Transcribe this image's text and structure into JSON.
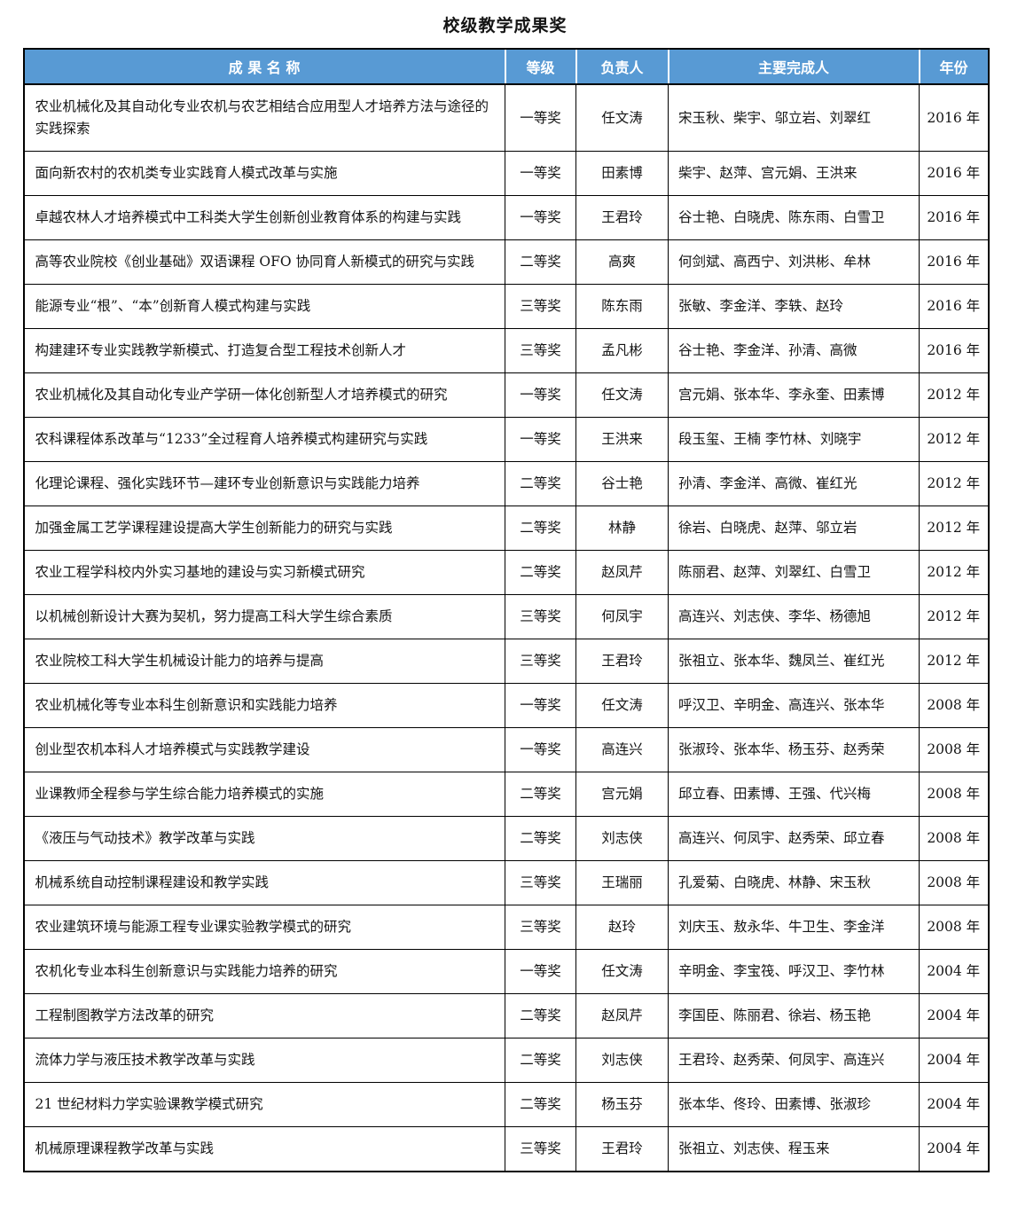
{
  "page": {
    "title": "校级教学成果奖"
  },
  "colors": {
    "header_bg": "#589AD4",
    "header_text": "#FFFFFF",
    "border": "#000000"
  },
  "table": {
    "columns": [
      {
        "key": "name",
        "label": "成 果 名 称"
      },
      {
        "key": "level",
        "label": "等级"
      },
      {
        "key": "leader",
        "label": "负责人"
      },
      {
        "key": "contributors",
        "label": "主要完成人"
      },
      {
        "key": "year",
        "label": "年份"
      }
    ],
    "rows": [
      {
        "name": "农业机械化及其自动化专业农机与农艺相结合应用型人才培养方法与途径的实践探索",
        "level": "一等奖",
        "leader": "任文涛",
        "contributors": "宋玉秋、柴宇、邬立岩、刘翠红",
        "year": "2016 年"
      },
      {
        "name": "面向新农村的农机类专业实践育人模式改革与实施",
        "level": "一等奖",
        "leader": "田素博",
        "contributors": "柴宇、赵萍、宫元娟、王洪来",
        "year": "2016 年"
      },
      {
        "name": "卓越农林人才培养模式中工科类大学生创新创业教育体系的构建与实践",
        "level": "一等奖",
        "leader": "王君玲",
        "contributors": "谷士艳、白晓虎、陈东雨、白雪卫",
        "year": "2016 年"
      },
      {
        "name": "高等农业院校《创业基础》双语课程 OFO 协同育人新模式的研究与实践",
        "level": "二等奖",
        "leader": "高爽",
        "contributors": "何剑斌、高西宁、刘洪彬、牟林",
        "year": "2016 年"
      },
      {
        "name": "能源专业“根”、“本”创新育人模式构建与实践",
        "level": "三等奖",
        "leader": "陈东雨",
        "contributors": "张敏、李金洋、李轶、赵玲",
        "year": "2016 年"
      },
      {
        "name": "构建建环专业实践教学新模式、打造复合型工程技术创新人才",
        "level": "三等奖",
        "leader": "孟凡彬",
        "contributors": "谷士艳、李金洋、孙清、高微",
        "year": "2016 年"
      },
      {
        "name": "农业机械化及其自动化专业产学研一体化创新型人才培养模式的研究",
        "level": "一等奖",
        "leader": "任文涛",
        "contributors": "宫元娟、张本华、李永奎、田素博",
        "year": "2012 年"
      },
      {
        "name": "农科课程体系改革与“1233”全过程育人培养模式构建研究与实践",
        "level": "一等奖",
        "leader": "王洪来",
        "contributors": "段玉玺、王楠 李竹林、刘晓宇",
        "year": "2012 年"
      },
      {
        "name": "化理论课程、强化实践环节—建环专业创新意识与实践能力培养",
        "level": "二等奖",
        "leader": "谷士艳",
        "contributors": "孙清、李金洋、高微、崔红光",
        "year": "2012 年"
      },
      {
        "name": "加强金属工艺学课程建设提高大学生创新能力的研究与实践",
        "level": "二等奖",
        "leader": "林静",
        "contributors": "徐岩、白晓虎、赵萍、邬立岩",
        "year": "2012 年"
      },
      {
        "name": "农业工程学科校内外实习基地的建设与实习新模式研究",
        "level": "二等奖",
        "leader": "赵凤芹",
        "contributors": "陈丽君、赵萍、刘翠红、白雪卫",
        "year": "2012 年"
      },
      {
        "name": "以机械创新设计大赛为契机，努力提高工科大学生综合素质",
        "level": "三等奖",
        "leader": "何凤宇",
        "contributors": "高连兴、刘志侠、李华、杨德旭",
        "year": "2012 年"
      },
      {
        "name": "农业院校工科大学生机械设计能力的培养与提高",
        "level": "三等奖",
        "leader": "王君玲",
        "contributors": "张祖立、张本华、魏凤兰、崔红光",
        "year": "2012 年"
      },
      {
        "name": "农业机械化等专业本科生创新意识和实践能力培养",
        "level": "一等奖",
        "leader": "任文涛",
        "contributors": "呼汉卫、辛明金、高连兴、张本华",
        "year": "2008 年"
      },
      {
        "name": "创业型农机本科人才培养模式与实践教学建设",
        "level": "一等奖",
        "leader": "高连兴",
        "contributors": "张淑玲、张本华、杨玉芬、赵秀荣",
        "year": "2008 年"
      },
      {
        "name": "业课教师全程参与学生综合能力培养模式的实施",
        "level": "二等奖",
        "leader": "宫元娟",
        "contributors": "邱立春、田素博、王强、代兴梅",
        "year": "2008 年"
      },
      {
        "name": "《液压与气动技术》教学改革与实践",
        "level": "二等奖",
        "leader": "刘志侠",
        "contributors": "高连兴、何凤宇、赵秀荣、邱立春",
        "year": "2008 年"
      },
      {
        "name": "机械系统自动控制课程建设和教学实践",
        "level": "三等奖",
        "leader": "王瑞丽",
        "contributors": "孔爱菊、白晓虎、林静、宋玉秋",
        "year": "2008 年"
      },
      {
        "name": "农业建筑环境与能源工程专业课实验教学模式的研究",
        "level": "三等奖",
        "leader": "赵玲",
        "contributors": "刘庆玉、敖永华、牛卫生、李金洋",
        "year": "2008 年"
      },
      {
        "name": "农机化专业本科生创新意识与实践能力培养的研究",
        "level": "一等奖",
        "leader": "任文涛",
        "contributors": "辛明金、李宝筏、呼汉卫、李竹林",
        "year": "2004 年"
      },
      {
        "name": "工程制图教学方法改革的研究",
        "level": "二等奖",
        "leader": "赵凤芹",
        "contributors": "李国臣、陈丽君、徐岩、杨玉艳",
        "year": "2004 年"
      },
      {
        "name": "流体力学与液压技术教学改革与实践",
        "level": "二等奖",
        "leader": "刘志侠",
        "contributors": "王君玲、赵秀荣、何凤宇、高连兴",
        "year": "2004 年"
      },
      {
        "name": "21 世纪材料力学实验课教学模式研究",
        "level": "二等奖",
        "leader": "杨玉芬",
        "contributors": "张本华、佟玲、田素博、张淑珍",
        "year": "2004 年"
      },
      {
        "name": "机械原理课程教学改革与实践",
        "level": "三等奖",
        "leader": "王君玲",
        "contributors": "张祖立、刘志侠、程玉来",
        "year": "2004 年"
      }
    ]
  }
}
